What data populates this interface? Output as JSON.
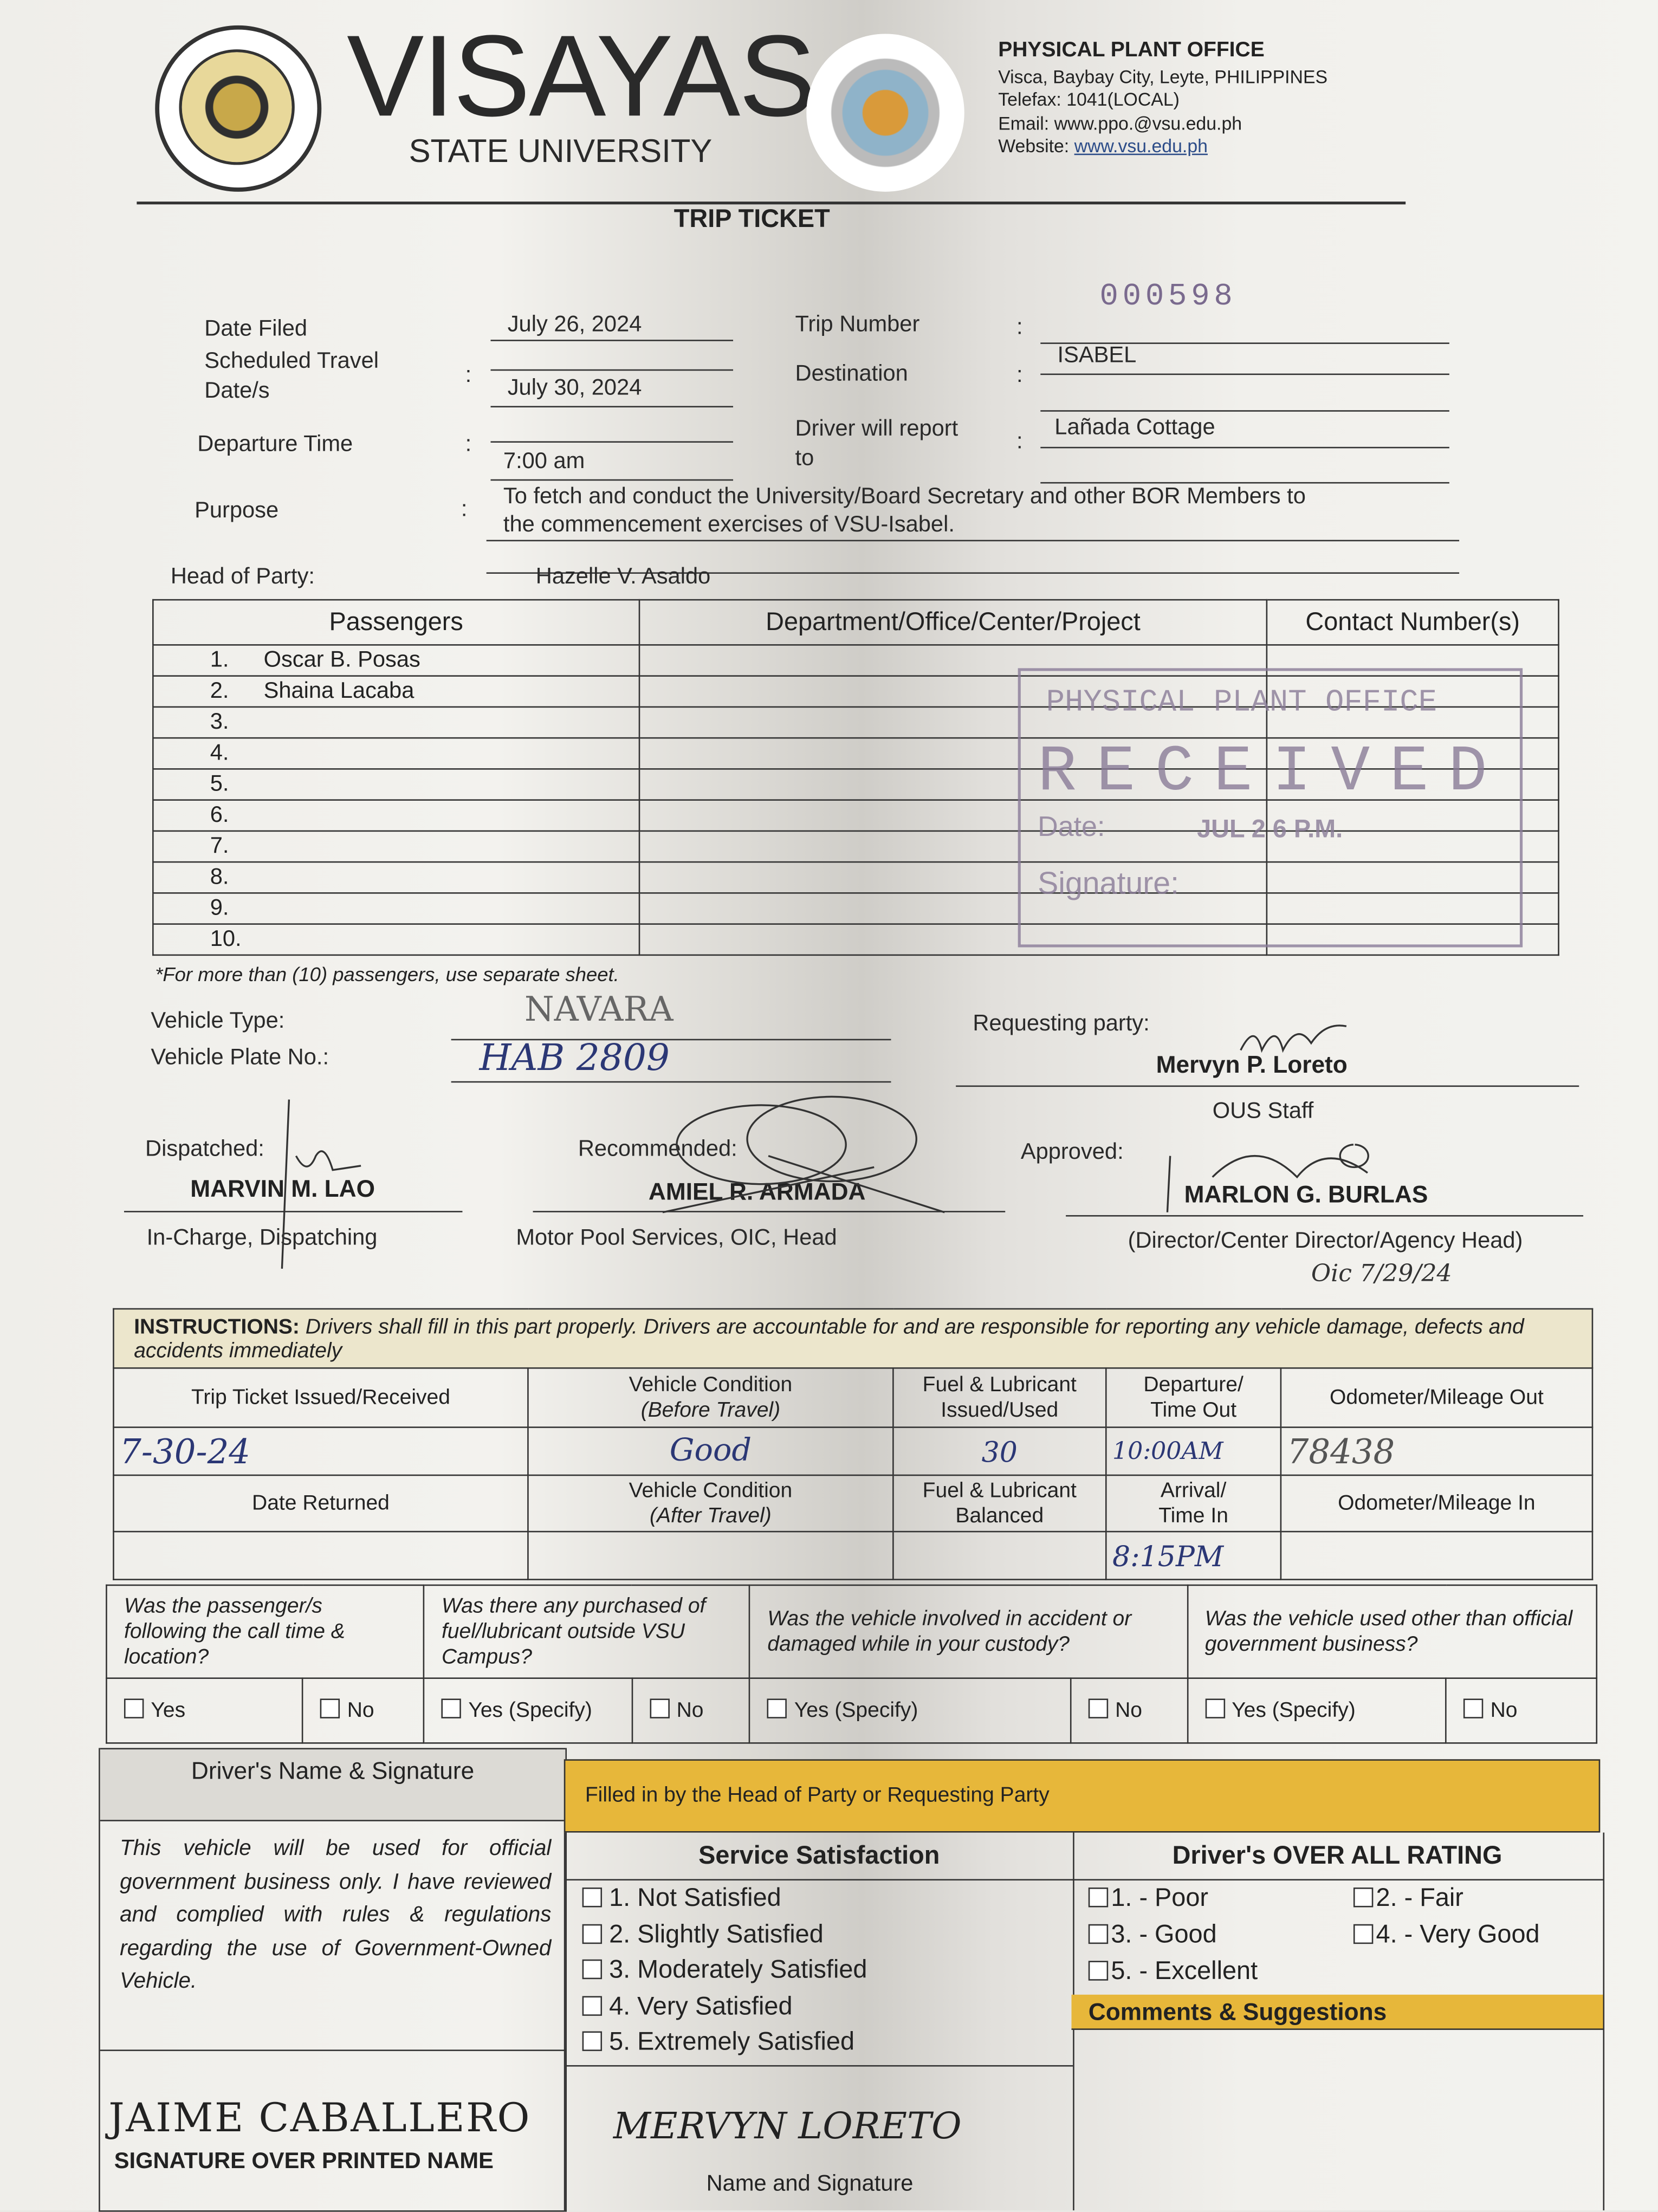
{
  "header": {
    "university_word": "VISAYAS",
    "university_sub": "STATE UNIVERSITY",
    "seal_text": "VISAYAS STATE UNIVERSITY",
    "office_logo_text": "PHYSICAL PLANT OFFICE",
    "office_title": "PHYSICAL PLANT OFFICE",
    "address": "Visca, Baybay City, Leyte, PHILIPPINES",
    "telefax": "Telefax: 1041(LOCAL)",
    "email": "Email: www.ppo.@vsu.edu.ph",
    "website_label": "Website:",
    "website": "www.vsu.edu.ph"
  },
  "form_title": "TRIP TICKET",
  "trip_number_stamp": "000598",
  "fields": {
    "date_filed_label": "Date Filed",
    "date_filed": "July 26, 2024",
    "sched_label_1": "Scheduled Travel",
    "sched_label_2": "Date/s",
    "sched": "July 30, 2024",
    "departure_label": "Departure Time",
    "departure": "7:00 am",
    "purpose_label": "Purpose",
    "purpose_1": "To fetch and conduct the University/Board Secretary and other BOR Members to",
    "purpose_2": "the commencement exercises of VSU-Isabel.",
    "head_label": "Head of Party:",
    "head": "Hazelle V. Asaldo",
    "trip_number_label": "Trip Number",
    "destination_label": "Destination",
    "destination": "ISABEL",
    "report_label_1": "Driver will report",
    "report_label_2": "to",
    "report": "Lañada Cottage",
    "colon": ":"
  },
  "passengers": {
    "headers": [
      "Passengers",
      "Department/Office/Center/Project",
      "Contact Number(s)"
    ],
    "rows": [
      {
        "no": "1.",
        "name": "Oscar B. Posas"
      },
      {
        "no": "2.",
        "name": "Shaina Lacaba"
      },
      {
        "no": "3.",
        "name": ""
      },
      {
        "no": "4.",
        "name": ""
      },
      {
        "no": "5.",
        "name": ""
      },
      {
        "no": "6.",
        "name": ""
      },
      {
        "no": "7.",
        "name": ""
      },
      {
        "no": "8.",
        "name": ""
      },
      {
        "no": "9.",
        "name": ""
      },
      {
        "no": "10.",
        "name": ""
      }
    ],
    "note": "*For more than (10) passengers, use separate sheet."
  },
  "received_stamp": {
    "office": "PHYSICAL PLANT OFFICE",
    "word": "RECEIVED",
    "date_label": "Date:",
    "date": "JUL 2 6 P.M.",
    "signature_label": "Signature:"
  },
  "vehicle": {
    "type_label": "Vehicle Type:",
    "type": "NAVARA",
    "plate_label": "Vehicle Plate No.:",
    "plate": "HAB 2809"
  },
  "requesting": {
    "label": "Requesting party:",
    "name": "Mervyn P. Loreto",
    "title": "OUS Staff"
  },
  "signatories": {
    "dispatched_label": "Dispatched:",
    "dispatched_name": "MARVIN M. LAO",
    "dispatched_title": "In-Charge, Dispatching",
    "recommended_label": "Recommended:",
    "recommended_name": "AMIEL R. ARMADA",
    "recommended_title": "Motor Pool Services, OIC, Head",
    "approved_label": "Approved:",
    "approved_name": "MARLON G. BURLAS",
    "approved_title": "(Director/Center Director/Agency Head)",
    "approved_note": "Oic 7/29/24"
  },
  "instructions": {
    "bold": "INSTRUCTIONS:",
    "text": "Drivers shall fill in this part properly.  Drivers are accountable for and are responsible for reporting any vehicle damage, defects and accidents immediately",
    "row1_headers": [
      "Trip Ticket Issued/Received",
      "Vehicle Condition",
      "(Before Travel)",
      "Fuel & Lubricant",
      "Issued/Used",
      "Departure/",
      "Time Out",
      "Odometer/Mileage Out"
    ],
    "row1_values": [
      "7-30-24",
      "Good",
      "30",
      "10:00AM",
      "78438"
    ],
    "row2_headers": [
      "Date Returned",
      "Vehicle Condition",
      "(After Travel)",
      "Fuel & Lubricant",
      "Balanced",
      "Arrival/",
      "Time In",
      "Odometer/Mileage In"
    ],
    "row2_values": [
      "",
      "",
      "",
      "8:15PM",
      ""
    ]
  },
  "questions": [
    {
      "q": "Was the passenger/s following the call time & location?",
      "yes": "Yes",
      "no": "No"
    },
    {
      "q": "Was there any purchased of fuel/lubricant outside VSU Campus?",
      "yes": "Yes (Specify)",
      "no": "No"
    },
    {
      "q": "Was the vehicle involved in accident or damaged while in your custody?",
      "yes": "Yes (Specify)",
      "no": "No"
    },
    {
      "q": "Was the vehicle used other than official government business?",
      "yes": "Yes (Specify)",
      "no": "No"
    }
  ],
  "driver": {
    "header": "Driver's Name & Signature",
    "statement": "This vehicle will be used for official government business only.  I have reviewed and complied with rules & regulations regarding the use of Government-Owned Vehicle.",
    "name": "JAIME CABALLERO",
    "caption": "SIGNATURE OVER PRINTED NAME"
  },
  "head_section": {
    "banner": "Filled in by the Head of Party or Requesting Party",
    "service_header": "Service Satisfaction",
    "service_options": [
      "1.  Not Satisfied",
      "2.  Slightly Satisfied",
      "3.  Moderately Satisfied",
      "4.  Very Satisfied",
      "5.  Extremely Satisfied"
    ],
    "signer": "MERVYN LORETO",
    "signer_caption": "Name and Signature",
    "rating_header": "Driver's OVER ALL RATING",
    "rating_options": [
      "1. - Poor",
      "2. - Fair",
      "3. - Good",
      "4. - Very Good",
      "5. - Excellent"
    ],
    "comments_header": "Comments & Suggestions"
  },
  "colors": {
    "banner_yellow": "#e7b73a",
    "ink_blue": "#2b3775",
    "stamp_purple": "#7a6a8e",
    "instructions_fill": "#ece6cc"
  }
}
